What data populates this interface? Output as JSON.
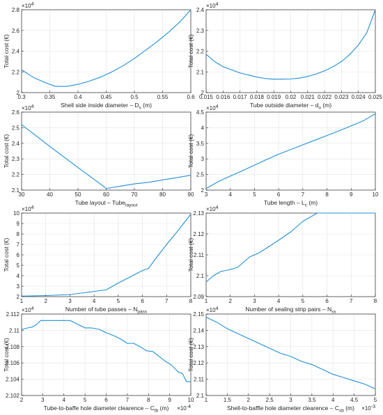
{
  "line_color": "#1f8fd6",
  "chart_data": [
    {
      "type": "line",
      "ylabel": "Total cost (€)",
      "xlabel": "Shell side inside diameter – D",
      "xlabel_sub": "s",
      "xlabel_tail": " (m)",
      "y_multiplier": "×10",
      "y_multiplier_exp": "4",
      "x_multiplier": "",
      "x_multiplier_exp": "",
      "xlim": [
        0.3,
        0.6
      ],
      "ylim": [
        2.0,
        2.8
      ],
      "xticks": [
        0.3,
        0.35,
        0.4,
        0.45,
        0.5,
        0.55,
        0.6
      ],
      "xtick_labels": [
        "0.3",
        "0.35",
        "0.4",
        "0.45",
        "0.5",
        "0.55",
        "0.6"
      ],
      "yticks": [
        2.0,
        2.2,
        2.4,
        2.6,
        2.8
      ],
      "ytick_labels": [
        "2",
        "2.2",
        "2.4",
        "2.6",
        "2.8"
      ],
      "x": [
        0.3,
        0.32,
        0.34,
        0.36,
        0.38,
        0.4,
        0.42,
        0.44,
        0.46,
        0.48,
        0.5,
        0.52,
        0.54,
        0.56,
        0.58,
        0.6
      ],
      "y": [
        2.22,
        2.15,
        2.1,
        2.06,
        2.06,
        2.08,
        2.11,
        2.15,
        2.2,
        2.26,
        2.33,
        2.41,
        2.49,
        2.58,
        2.68,
        2.8
      ]
    },
    {
      "type": "line",
      "ylabel": "Total cost (€)",
      "xlabel": "Tube outside diameter – d",
      "xlabel_sub": "o",
      "xlabel_tail": " (m)",
      "y_multiplier": "×10",
      "y_multiplier_exp": "4",
      "x_multiplier": "",
      "x_multiplier_exp": "",
      "xlim": [
        0.015,
        0.025
      ],
      "ylim": [
        2.0,
        2.4
      ],
      "xticks": [
        0.015,
        0.016,
        0.017,
        0.018,
        0.019,
        0.02,
        0.021,
        0.022,
        0.023,
        0.024,
        0.025
      ],
      "xtick_labels": [
        "0.015",
        "0.016",
        "0.017",
        "0.018",
        "0.019",
        "0.02",
        "0.021",
        "0.022",
        "0.023",
        "0.024",
        "0.025"
      ],
      "yticks": [
        2.0,
        2.1,
        2.2,
        2.3,
        2.4
      ],
      "ytick_labels": [
        "2",
        "2.1",
        "2.2",
        "2.3",
        "2.4"
      ],
      "x": [
        0.015,
        0.0155,
        0.016,
        0.0165,
        0.017,
        0.0175,
        0.018,
        0.0185,
        0.019,
        0.0195,
        0.02,
        0.0205,
        0.021,
        0.0215,
        0.022,
        0.0225,
        0.023,
        0.0235,
        0.024,
        0.0245,
        0.025
      ],
      "y": [
        2.185,
        2.15,
        2.125,
        2.11,
        2.095,
        2.085,
        2.075,
        2.068,
        2.065,
        2.065,
        2.066,
        2.07,
        2.078,
        2.09,
        2.105,
        2.125,
        2.15,
        2.185,
        2.23,
        2.29,
        2.4
      ]
    },
    {
      "type": "line",
      "ylabel": "Total cost (€)",
      "xlabel": "Tube layout – Tube",
      "xlabel_sub": "layout",
      "xlabel_tail": "",
      "y_multiplier": "×10",
      "y_multiplier_exp": "4",
      "x_multiplier": "",
      "x_multiplier_exp": "",
      "xlim": [
        30,
        90
      ],
      "ylim": [
        2.1,
        2.6
      ],
      "xticks": [
        30,
        40,
        50,
        60,
        70,
        80,
        90
      ],
      "xtick_labels": [
        "30",
        "40",
        "50",
        "60",
        "70",
        "80",
        "90"
      ],
      "yticks": [
        2.1,
        2.2,
        2.3,
        2.4,
        2.5,
        2.6
      ],
      "ytick_labels": [
        "2.1",
        "2.2",
        "2.3",
        "2.4",
        "2.5",
        "2.6"
      ],
      "x": [
        30,
        40,
        50,
        59,
        60,
        65,
        70,
        75,
        80,
        85,
        90
      ],
      "y": [
        2.52,
        2.38,
        2.245,
        2.125,
        2.11,
        2.125,
        2.14,
        2.15,
        2.165,
        2.18,
        2.195
      ]
    },
    {
      "type": "line",
      "ylabel": "Total cost (€)",
      "xlabel": "Tube length – L",
      "xlabel_sub": "c",
      "xlabel_tail": " (m)",
      "y_multiplier": "×10",
      "y_multiplier_exp": "4",
      "x_multiplier": "",
      "x_multiplier_exp": "",
      "xlim": [
        3,
        10
      ],
      "ylim": [
        2.0,
        4.5
      ],
      "xticks": [
        3,
        4,
        5,
        6,
        7,
        8,
        9,
        10
      ],
      "xtick_labels": [
        "3",
        "4",
        "5",
        "6",
        "7",
        "8",
        "9",
        "10"
      ],
      "yticks": [
        2.0,
        2.5,
        3.0,
        3.5,
        4.0,
        4.5
      ],
      "ytick_labels": [
        "2",
        "2.5",
        "3",
        "3.5",
        "4",
        "4.5"
      ],
      "x": [
        3,
        3.5,
        4,
        4.5,
        5,
        5.5,
        6,
        6.5,
        7,
        7.5,
        8,
        8.5,
        9,
        9.5,
        10
      ],
      "y": [
        2.05,
        2.27,
        2.45,
        2.62,
        2.8,
        2.98,
        3.15,
        3.3,
        3.45,
        3.6,
        3.75,
        3.9,
        4.06,
        4.22,
        4.45
      ]
    },
    {
      "type": "line",
      "ylabel": "Total cost (€)",
      "xlabel": "Number of tube passes – N",
      "xlabel_sub": "pass",
      "xlabel_tail": "",
      "y_multiplier": "×10",
      "y_multiplier_exp": "4",
      "x_multiplier": "",
      "x_multiplier_exp": "",
      "xlim": [
        1,
        8
      ],
      "ylim": [
        2,
        10
      ],
      "xticks": [
        1,
        2,
        3,
        4,
        5,
        6,
        7,
        8
      ],
      "xtick_labels": [
        "1",
        "2",
        "3",
        "4",
        "5",
        "6",
        "7",
        "8"
      ],
      "yticks": [
        2,
        3,
        4,
        5,
        6,
        7,
        8,
        9,
        10
      ],
      "ytick_labels": [
        "2",
        "3",
        "4",
        "5",
        "6",
        "7",
        "8",
        "9",
        "10"
      ],
      "x": [
        1,
        2,
        2.5,
        3,
        3.5,
        4,
        4.5,
        5,
        5.5,
        6,
        6.25,
        6.5,
        7,
        7.5,
        8
      ],
      "y": [
        2.05,
        2.1,
        2.15,
        2.2,
        2.35,
        2.5,
        2.65,
        3.3,
        3.9,
        4.5,
        4.7,
        5.5,
        7.0,
        8.4,
        9.9
      ]
    },
    {
      "type": "line",
      "ylabel": "Total cost (€)",
      "xlabel": "Number of sealing strip pairs – N",
      "xlabel_sub": "ss",
      "xlabel_tail": "",
      "y_multiplier": "×10",
      "y_multiplier_exp": "4",
      "x_multiplier": "",
      "x_multiplier_exp": "",
      "xlim": [
        1,
        8
      ],
      "ylim": [
        2.09,
        2.13
      ],
      "xticks": [
        1,
        2,
        3,
        4,
        5,
        6,
        7,
        8
      ],
      "xtick_labels": [
        "1",
        "2",
        "3",
        "4",
        "5",
        "6",
        "7",
        "8"
      ],
      "yticks": [
        2.09,
        2.1,
        2.11,
        2.12,
        2.13
      ],
      "ytick_labels": [
        "2.09",
        "2.1",
        "2.11",
        "2.12",
        "2.13"
      ],
      "x": [
        1,
        1.3,
        1.6,
        2,
        2.3,
        2.5,
        2.8,
        3.2,
        3.6,
        4,
        4.5,
        5,
        5.3,
        5.6,
        6,
        7,
        8
      ],
      "y": [
        2.097,
        2.1,
        2.102,
        2.103,
        2.104,
        2.106,
        2.109,
        2.111,
        2.114,
        2.117,
        2.121,
        2.126,
        2.128,
        2.13,
        2.13,
        2.13,
        2.13
      ]
    },
    {
      "type": "line",
      "ylabel": "Total cost (€)",
      "xlabel": "Tube-to-baffe hole diameter clearence – C",
      "xlabel_sub": "tb",
      "xlabel_tail": " (m)",
      "y_multiplier": "×10",
      "y_multiplier_exp": "4",
      "x_multiplier": "×10",
      "x_multiplier_exp": "-4",
      "xlim": [
        2,
        10
      ],
      "ylim": [
        2.102,
        2.112
      ],
      "xticks": [
        2,
        3,
        4,
        5,
        6,
        7,
        8,
        9,
        10
      ],
      "xtick_labels": [
        "2",
        "3",
        "4",
        "5",
        "6",
        "7",
        "8",
        "9",
        "10"
      ],
      "yticks": [
        2.102,
        2.104,
        2.106,
        2.108,
        2.11,
        2.112
      ],
      "ytick_labels": [
        "2.102",
        "2.104",
        "2.106",
        "2.108",
        "2.11",
        "2.112"
      ],
      "x": [
        2,
        2.3,
        2.5,
        2.7,
        2.9,
        3.3,
        3.8,
        4.3,
        4.6,
        5.0,
        5.3,
        5.7,
        6.0,
        6.4,
        6.7,
        7.0,
        7.3,
        7.6,
        7.9,
        8.2,
        8.5,
        8.8,
        9.1,
        9.4,
        9.6,
        9.8,
        10
      ],
      "y": [
        2.1101,
        2.1103,
        2.1104,
        2.1107,
        2.1112,
        2.1112,
        2.1112,
        2.1112,
        2.1108,
        2.1103,
        2.1103,
        2.1101,
        2.1097,
        2.1093,
        2.1089,
        2.1084,
        2.1084,
        2.108,
        2.1075,
        2.1074,
        2.1068,
        2.1062,
        2.1057,
        2.1049,
        2.1047,
        2.1037,
        2.1037
      ]
    },
    {
      "type": "line",
      "ylabel": "Total cost (€)",
      "xlabel": "Shell-to-baffle hole diameter clearence – C",
      "xlabel_sub": "sb",
      "xlabel_tail": " (m)",
      "y_multiplier": "×10",
      "y_multiplier_exp": "4",
      "x_multiplier": "×10",
      "x_multiplier_exp": "-3",
      "xlim": [
        1,
        5
      ],
      "ylim": [
        2.1,
        2.15
      ],
      "xticks": [
        1,
        1.5,
        2,
        2.5,
        3,
        3.5,
        4,
        4.5,
        5
      ],
      "xtick_labels": [
        "1",
        "1.5",
        "2",
        "2.5",
        "3",
        "3.5",
        "4",
        "4.5",
        "5"
      ],
      "yticks": [
        2.1,
        2.11,
        2.12,
        2.13,
        2.14,
        2.15
      ],
      "ytick_labels": [
        "2.1",
        "2.11",
        "2.12",
        "2.13",
        "2.14",
        "2.15"
      ],
      "x": [
        1,
        1.25,
        1.5,
        1.75,
        2,
        2.25,
        2.5,
        2.75,
        3,
        3.25,
        3.5,
        3.75,
        4,
        4.25,
        4.5,
        4.75,
        5
      ],
      "y": [
        2.148,
        2.145,
        2.141,
        2.138,
        2.135,
        2.132,
        2.129,
        2.126,
        2.124,
        2.121,
        2.119,
        2.116,
        2.113,
        2.111,
        2.109,
        2.107,
        2.104
      ]
    }
  ]
}
